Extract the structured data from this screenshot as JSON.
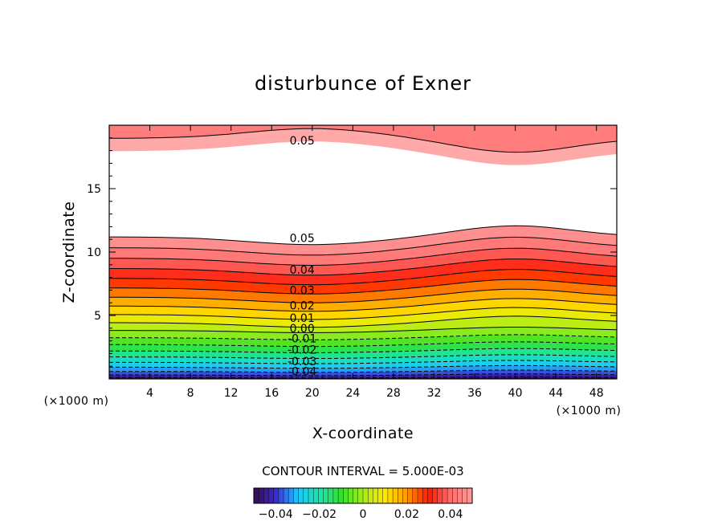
{
  "chart_data": {
    "type": "contour",
    "title": "disturbunce of Exner",
    "xlabel": "X-coordinate",
    "ylabel": "Z-coordinate",
    "x_unit": "(×1000 m)",
    "y_unit": "(×1000 m)",
    "xlim": [
      0,
      50
    ],
    "ylim": [
      0,
      20
    ],
    "x_ticks": [
      4,
      8,
      12,
      16,
      20,
      24,
      28,
      32,
      36,
      40,
      44,
      48
    ],
    "y_ticks": [
      5,
      10,
      15
    ],
    "contour_interval_text": "CONTOUR INTERVAL = 5.000E-03",
    "contour_interval": 0.005,
    "contour_labels": [
      {
        "text": "0.05",
        "x": 19,
        "z": 18.8
      },
      {
        "text": "0.05",
        "x": 19,
        "z": 11.1
      },
      {
        "text": "0.04",
        "x": 19,
        "z": 8.6
      },
      {
        "text": "0.03",
        "x": 19,
        "z": 7.0
      },
      {
        "text": "0.02",
        "x": 19,
        "z": 5.8
      },
      {
        "text": "0.01",
        "x": 19,
        "z": 4.8
      },
      {
        "text": "0.00",
        "x": 19,
        "z": 4.0
      },
      {
        "text": "-0.01",
        "x": 19,
        "z": 3.2
      },
      {
        "text": "-0.02",
        "x": 19,
        "z": 2.3
      },
      {
        "text": "-0.03",
        "x": 19,
        "z": 1.4
      },
      {
        "text": "-0.04",
        "x": 19,
        "z": 0.6
      }
    ],
    "colorbar": {
      "range": [
        -0.05,
        0.05
      ],
      "ticks": [
        -0.04,
        -0.02,
        0,
        0.02,
        0.04
      ],
      "tick_labels": [
        "−0.04",
        "−0.02",
        "0",
        "0.02",
        "0.04"
      ]
    },
    "colormap": [
      "#3a0a4c",
      "#3a2bd0",
      "#1ec6ff",
      "#18e6b0",
      "#34e02a",
      "#a6ee1a",
      "#ffe800",
      "#ff9a00",
      "#ff1800",
      "#ff6e6e",
      "#ff9a9a"
    ]
  }
}
